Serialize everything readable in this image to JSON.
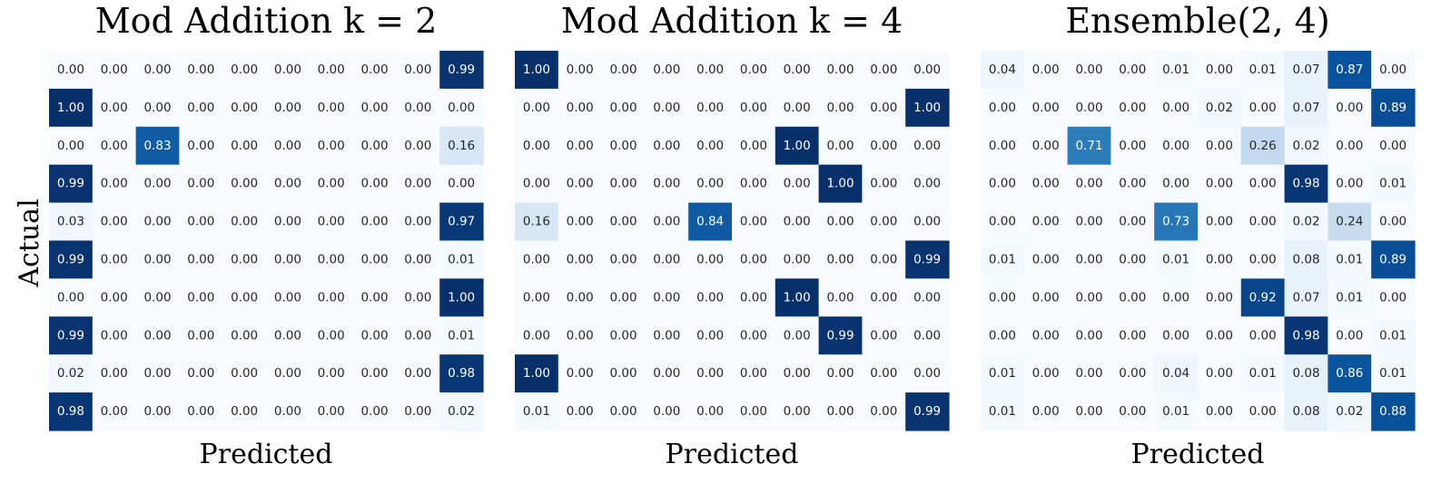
{
  "chart_data": [
    {
      "type": "heatmap",
      "title": "Mod Addition k = 2",
      "xlabel": "Predicted",
      "ylabel": "Actual",
      "colormap": "Blues",
      "value_range": [
        0,
        1
      ],
      "values": [
        [
          0.0,
          0.0,
          0.0,
          0.0,
          0.0,
          0.0,
          0.0,
          0.0,
          0.0,
          0.99
        ],
        [
          1.0,
          0.0,
          0.0,
          0.0,
          0.0,
          0.0,
          0.0,
          0.0,
          0.0,
          0.0
        ],
        [
          0.0,
          0.0,
          0.83,
          0.0,
          0.0,
          0.0,
          0.0,
          0.0,
          0.0,
          0.16
        ],
        [
          0.99,
          0.0,
          0.0,
          0.0,
          0.0,
          0.0,
          0.0,
          0.0,
          0.0,
          0.0
        ],
        [
          0.03,
          0.0,
          0.0,
          0.0,
          0.0,
          0.0,
          0.0,
          0.0,
          0.0,
          0.97
        ],
        [
          0.99,
          0.0,
          0.0,
          0.0,
          0.0,
          0.0,
          0.0,
          0.0,
          0.0,
          0.01
        ],
        [
          0.0,
          0.0,
          0.0,
          0.0,
          0.0,
          0.0,
          0.0,
          0.0,
          0.0,
          1.0
        ],
        [
          0.99,
          0.0,
          0.0,
          0.0,
          0.0,
          0.0,
          0.0,
          0.0,
          0.0,
          0.01
        ],
        [
          0.02,
          0.0,
          0.0,
          0.0,
          0.0,
          0.0,
          0.0,
          0.0,
          0.0,
          0.98
        ],
        [
          0.98,
          0.0,
          0.0,
          0.0,
          0.0,
          0.0,
          0.0,
          0.0,
          0.0,
          0.02
        ]
      ]
    },
    {
      "type": "heatmap",
      "title": "Mod Addition k = 4",
      "xlabel": "Predicted",
      "ylabel": "",
      "colormap": "Blues",
      "value_range": [
        0,
        1
      ],
      "values": [
        [
          1.0,
          0.0,
          0.0,
          0.0,
          0.0,
          0.0,
          0.0,
          0.0,
          0.0,
          0.0
        ],
        [
          0.0,
          0.0,
          0.0,
          0.0,
          0.0,
          0.0,
          0.0,
          0.0,
          0.0,
          1.0
        ],
        [
          0.0,
          0.0,
          0.0,
          0.0,
          0.0,
          0.0,
          1.0,
          0.0,
          0.0,
          0.0
        ],
        [
          0.0,
          0.0,
          0.0,
          0.0,
          0.0,
          0.0,
          0.0,
          1.0,
          0.0,
          0.0
        ],
        [
          0.16,
          0.0,
          0.0,
          0.0,
          0.84,
          0.0,
          0.0,
          0.0,
          0.0,
          0.0
        ],
        [
          0.0,
          0.0,
          0.0,
          0.0,
          0.0,
          0.0,
          0.0,
          0.0,
          0.0,
          0.99
        ],
        [
          0.0,
          0.0,
          0.0,
          0.0,
          0.0,
          0.0,
          1.0,
          0.0,
          0.0,
          0.0
        ],
        [
          0.0,
          0.0,
          0.0,
          0.0,
          0.0,
          0.0,
          0.0,
          0.99,
          0.0,
          0.0
        ],
        [
          1.0,
          0.0,
          0.0,
          0.0,
          0.0,
          0.0,
          0.0,
          0.0,
          0.0,
          0.0
        ],
        [
          0.01,
          0.0,
          0.0,
          0.0,
          0.0,
          0.0,
          0.0,
          0.0,
          0.0,
          0.99
        ]
      ]
    },
    {
      "type": "heatmap",
      "title": "Ensemble(2, 4)",
      "xlabel": "Predicted",
      "ylabel": "",
      "colormap": "Blues",
      "value_range": [
        0,
        1
      ],
      "values": [
        [
          0.04,
          0.0,
          0.0,
          0.0,
          0.01,
          0.0,
          0.01,
          0.07,
          0.87,
          0.0
        ],
        [
          0.0,
          0.0,
          0.0,
          0.0,
          0.0,
          0.02,
          0.0,
          0.07,
          0.0,
          0.89
        ],
        [
          0.0,
          0.0,
          0.71,
          0.0,
          0.0,
          0.0,
          0.26,
          0.02,
          0.0,
          0.0
        ],
        [
          0.0,
          0.0,
          0.0,
          0.0,
          0.0,
          0.0,
          0.0,
          0.98,
          0.0,
          0.01
        ],
        [
          0.0,
          0.0,
          0.0,
          0.0,
          0.73,
          0.0,
          0.0,
          0.02,
          0.24,
          0.0
        ],
        [
          0.01,
          0.0,
          0.0,
          0.0,
          0.01,
          0.0,
          0.0,
          0.08,
          0.01,
          0.89
        ],
        [
          0.0,
          0.0,
          0.0,
          0.0,
          0.0,
          0.0,
          0.92,
          0.07,
          0.01,
          0.0
        ],
        [
          0.0,
          0.0,
          0.0,
          0.0,
          0.0,
          0.0,
          0.0,
          0.98,
          0.0,
          0.01
        ],
        [
          0.01,
          0.0,
          0.0,
          0.0,
          0.04,
          0.0,
          0.01,
          0.08,
          0.86,
          0.01
        ],
        [
          0.01,
          0.0,
          0.0,
          0.0,
          0.01,
          0.0,
          0.0,
          0.08,
          0.02,
          0.88
        ]
      ]
    }
  ]
}
